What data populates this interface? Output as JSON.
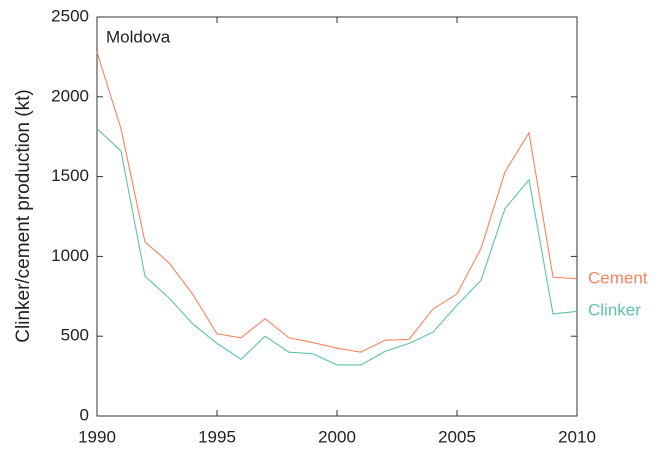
{
  "chart_data": {
    "type": "line",
    "annotation": "Moldova",
    "y_label": "Clinker/cement production (kt)",
    "x": [
      1990,
      1991,
      1992,
      1993,
      1994,
      1995,
      1996,
      1997,
      1998,
      1999,
      2000,
      2001,
      2002,
      2003,
      2004,
      2005,
      2006,
      2007,
      2008,
      2009,
      2010
    ],
    "series": [
      {
        "name": "Cement",
        "color": "#f4845f",
        "values": [
          2280,
          1800,
          1090,
          960,
          760,
          515,
          490,
          610,
          490,
          460,
          425,
          400,
          475,
          480,
          670,
          765,
          1050,
          1530,
          1775,
          870,
          860
        ]
      },
      {
        "name": "Clinker",
        "color": "#5cc4a4",
        "values": [
          1800,
          1660,
          875,
          740,
          575,
          455,
          355,
          500,
          400,
          390,
          320,
          320,
          405,
          455,
          525,
          695,
          850,
          1300,
          1480,
          640,
          655
        ]
      }
    ],
    "xlim": [
      1990,
      2010
    ],
    "xticks": [
      1990,
      1995,
      2000,
      2005,
      2010
    ],
    "ylim": [
      0,
      2500
    ],
    "yticks": [
      0,
      500,
      1000,
      1500,
      2000,
      2500
    ]
  }
}
